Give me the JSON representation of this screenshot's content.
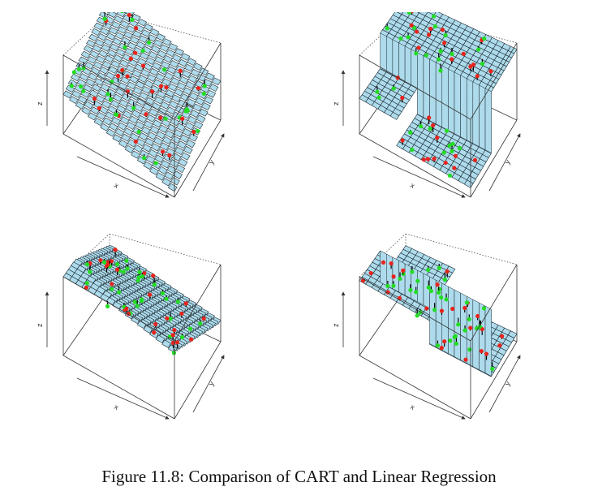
{
  "figure": {
    "caption": "Figure 11.8: Comparison of CART and Linear Regression",
    "panels": [
      {
        "id": "top-left",
        "surface": "linear-rising",
        "axis_labels": {
          "x": "x",
          "y": "y",
          "z": "z"
        }
      },
      {
        "id": "top-right",
        "surface": "cart-step-up",
        "axis_labels": {
          "x": "x",
          "y": "y",
          "z": "z"
        }
      },
      {
        "id": "bottom-left",
        "surface": "linear-falling",
        "axis_labels": {
          "x": "x",
          "y": "y",
          "z": "z"
        }
      },
      {
        "id": "bottom-right",
        "surface": "cart-step-down",
        "axis_labels": {
          "x": "x",
          "y": "y",
          "z": "z"
        }
      }
    ],
    "colors": {
      "surface_fill": "#aedbeb",
      "grid_line": "#1a2a33",
      "point_above": "#e8241c",
      "point_below": "#22dd22",
      "box_line": "#333333"
    }
  }
}
